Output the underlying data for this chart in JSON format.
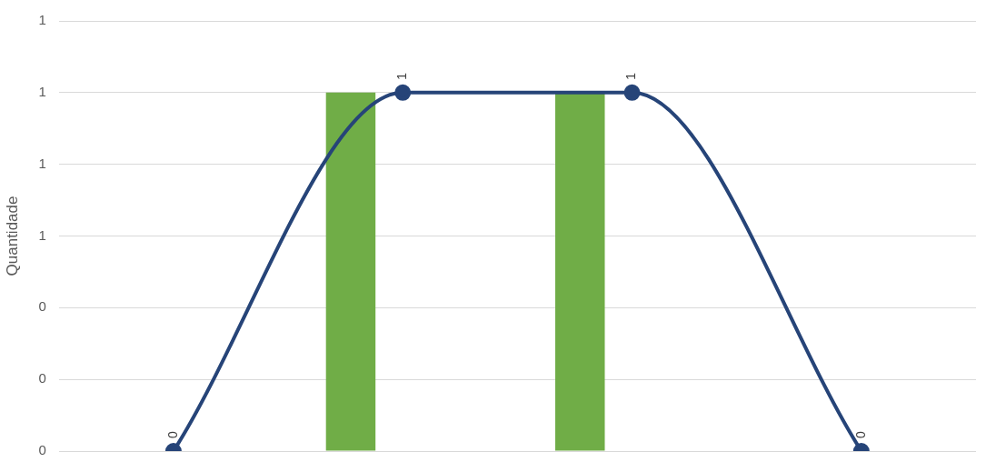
{
  "chart_data": {
    "type": "bar",
    "ylabel": "Quantidade",
    "categories": [
      null,
      null,
      null,
      null
    ],
    "series": [
      {
        "color": "#70ad47",
        "values": [
          null,
          1,
          1,
          null
        ]
      },
      {
        "type": "line",
        "color": "#264478",
        "values": [
          0,
          1,
          1,
          0
        ],
        "value_labels": [
          "0",
          "1",
          "1",
          "0"
        ]
      }
    ],
    "ylim": [
      0,
      1.2
    ],
    "yticks": [
      {
        "value": 0,
        "label": "0"
      },
      {
        "value": 0.2,
        "label": "0"
      },
      {
        "value": 0.4,
        "label": "0"
      },
      {
        "value": 0.6,
        "label": "1"
      },
      {
        "value": 0.8,
        "label": "1"
      },
      {
        "value": 1,
        "label": "1"
      },
      {
        "value": 1.2,
        "label": "1"
      }
    ],
    "grid": "y",
    "tick_labels": "y",
    "marker": "circle",
    "line_style": "solid"
  }
}
